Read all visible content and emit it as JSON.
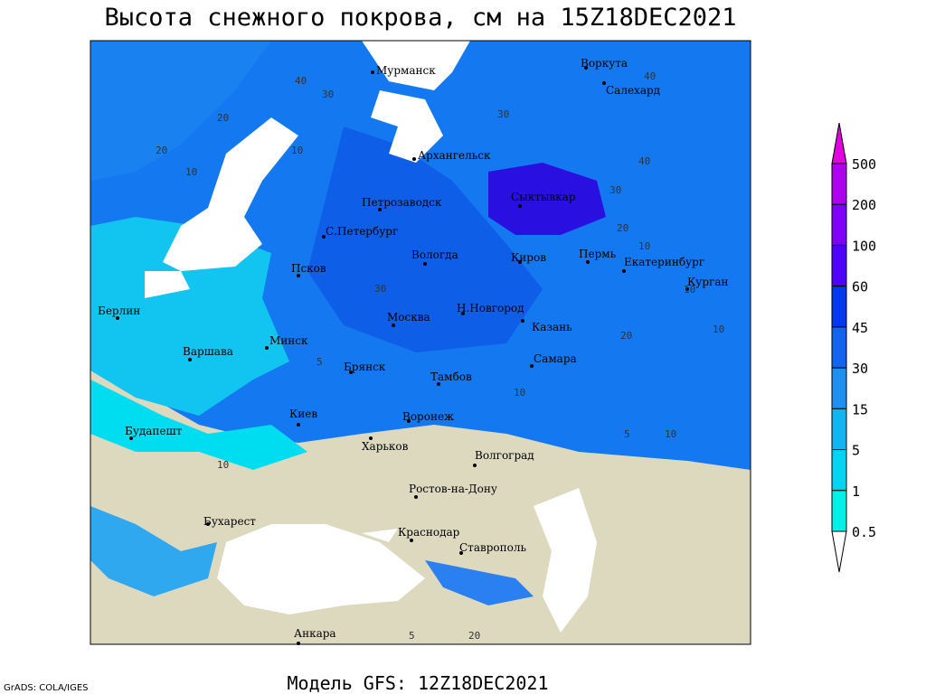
{
  "header": {
    "title": "Высота снежного покрова, см на 15Z18DEC2021"
  },
  "footer": {
    "model": "Модель GFS: 12Z18DEC2021",
    "credit": "GrADS: COLA/IGES"
  },
  "cities": [
    "Мурманск",
    "Воркута",
    "Салехард",
    "Архангельск",
    "Петрозаводск",
    "Сыктывкар",
    "С.Петербург",
    "Вологда",
    "Киров",
    "Пермь",
    "Екатеринбург",
    "Курган",
    "Псков",
    "Н.Новгород",
    "Казань",
    "Берлин",
    "Варшава",
    "Минск",
    "Москва",
    "Самара",
    "Брянск",
    "Тамбов",
    "Киев",
    "Воронеж",
    "Будапешт",
    "Харьков",
    "Волгоград",
    "Ростов-на-Дону",
    "Бухарест",
    "Краснодар",
    "Ставрополь",
    "Анкара"
  ],
  "contour_labels": [
    "40",
    "30",
    "20",
    "30",
    "10",
    "20",
    "10",
    "30",
    "40",
    "40",
    "20",
    "10",
    "30",
    "10",
    "20",
    "10",
    "5",
    "10",
    "5",
    "10",
    "20",
    "5",
    "10"
  ],
  "legend": {
    "labels": [
      "500",
      "200",
      "100",
      "60",
      "45",
      "30",
      "15",
      "5",
      "1",
      "0.5"
    ],
    "colors": [
      "#e000e0",
      "#b000f0",
      "#8000ff",
      "#5000ff",
      "#0038f0",
      "#1464f0",
      "#2090f0",
      "#10b4f0",
      "#00d4f0",
      "#00f0e8",
      "#ffffff"
    ]
  }
}
